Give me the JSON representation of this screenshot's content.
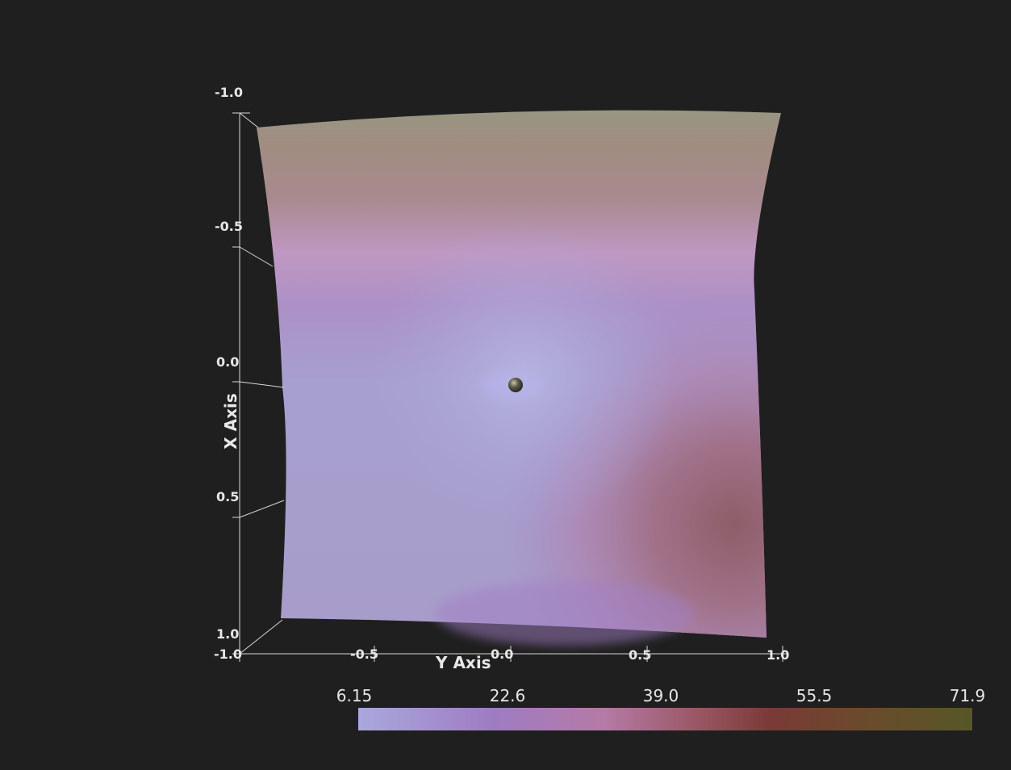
{
  "chart_data": {
    "type": "heatmap",
    "title": "",
    "xlabel": "X Axis",
    "ylabel": "Y Axis",
    "x_ticks": [
      "-1.0",
      "-0.5",
      "0.0",
      "0.5",
      "1.0"
    ],
    "y_ticks": [
      "-1.0",
      "-0.5",
      "0.0",
      "0.5",
      "1.0"
    ],
    "xlim": [
      -1.0,
      1.0
    ],
    "ylim": [
      -1.0,
      1.0
    ],
    "colorbar": {
      "ticks": [
        "6.15",
        "22.6",
        "39.0",
        "55.5",
        "71.9"
      ],
      "range": [
        6.15,
        71.9
      ],
      "colors": [
        "#a9a6dc",
        "#a07cc0",
        "#b27ba4",
        "#7a3a36",
        "#5b5626"
      ]
    },
    "point_marker": {
      "x": 0.0,
      "y": 0.0,
      "color": "#3a3a30"
    },
    "grid": false
  }
}
